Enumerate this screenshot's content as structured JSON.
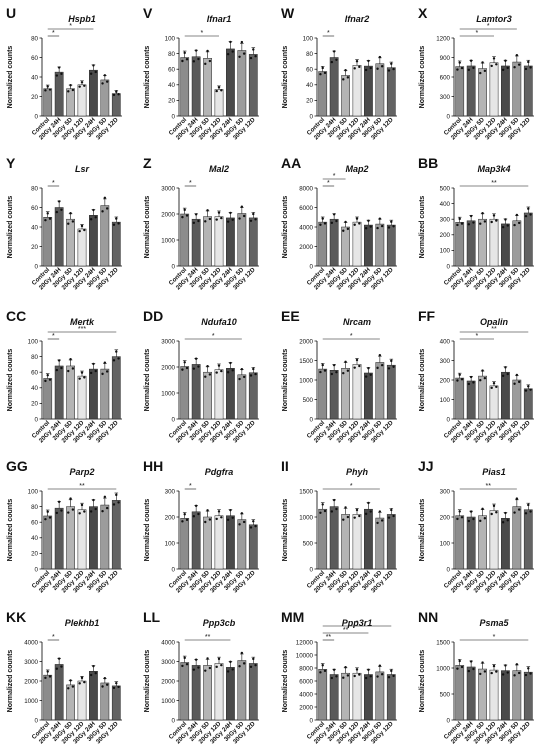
{
  "figure": {
    "ylabel": "Normalized counts",
    "categories": [
      "Control",
      "20Gy 24H",
      "20Gy 5D",
      "20Gy 12D",
      "30Gy 24H",
      "30Gy 5D",
      "30Gy 12D"
    ],
    "bar_colors": [
      "#8c8c8c",
      "#5a5a5a",
      "#b4b4b4",
      "#e6e6e6",
      "#4a4a4a",
      "#9c9c9c",
      "#636363"
    ]
  },
  "chart_data": [
    {
      "type": "bar",
      "panel": "U",
      "gene": "Hspb1",
      "ylim": [
        0,
        80
      ],
      "yticks": [
        0,
        20,
        40,
        60,
        80
      ],
      "values": [
        28,
        45,
        28,
        32,
        47,
        37,
        23
      ],
      "sig": [
        {
          "a": 0,
          "b": 1,
          "label": "*"
        },
        {
          "a": 0,
          "b": 4,
          "label": "*"
        }
      ]
    },
    {
      "type": "bar",
      "panel": "V",
      "gene": "Ifnar1",
      "ylim": [
        0,
        100
      ],
      "yticks": [
        0,
        20,
        40,
        60,
        80,
        100
      ],
      "values": [
        75,
        76,
        74,
        34,
        86,
        84,
        79
      ],
      "sig": [
        {
          "a": 0,
          "b": 3,
          "label": "*"
        }
      ]
    },
    {
      "type": "bar",
      "panel": "W",
      "gene": "Ifnar2",
      "ylim": [
        0,
        100
      ],
      "yticks": [
        0,
        20,
        40,
        60,
        80,
        100
      ],
      "values": [
        57,
        75,
        52,
        65,
        64,
        67,
        62
      ],
      "sig": [
        {
          "a": 0,
          "b": 1,
          "label": "*"
        }
      ]
    },
    {
      "type": "bar",
      "panel": "X",
      "gene": "Lamtor3",
      "ylim": [
        0,
        1200
      ],
      "yticks": [
        0,
        300,
        600,
        900,
        1200
      ],
      "values": [
        760,
        770,
        730,
        820,
        770,
        830,
        770
      ],
      "sig": [
        {
          "a": 0,
          "b": 3,
          "label": "*"
        },
        {
          "a": 0,
          "b": 5,
          "label": "*"
        }
      ]
    },
    {
      "type": "bar",
      "panel": "Y",
      "gene": "Lsr",
      "ylim": [
        0,
        80
      ],
      "yticks": [
        0,
        20,
        40,
        60,
        80
      ],
      "values": [
        50,
        60,
        48,
        38,
        52,
        62,
        45
      ],
      "sig": [
        {
          "a": 0,
          "b": 1,
          "label": "*"
        }
      ]
    },
    {
      "type": "bar",
      "panel": "Z",
      "gene": "Mal2",
      "ylim": [
        0,
        3000
      ],
      "yticks": [
        0,
        1000,
        2000,
        3000
      ],
      "values": [
        2000,
        1800,
        1900,
        1900,
        1850,
        2020,
        1850
      ],
      "sig": [
        {
          "a": 0,
          "b": 1,
          "label": "*"
        }
      ]
    },
    {
      "type": "bar",
      "panel": "AA",
      "gene": "Map2",
      "ylim": [
        0,
        8000
      ],
      "yticks": [
        0,
        2000,
        4000,
        6000,
        8000
      ],
      "values": [
        4500,
        4800,
        4000,
        4500,
        4200,
        4300,
        4200
      ],
      "sig": [
        {
          "a": 0,
          "b": 1,
          "label": "*"
        },
        {
          "a": 0,
          "b": 2,
          "label": "*"
        }
      ]
    },
    {
      "type": "bar",
      "panel": "BB",
      "gene": "Map3k4",
      "ylim": [
        0,
        500
      ],
      "yticks": [
        0,
        100,
        200,
        300,
        400,
        500
      ],
      "values": [
        280,
        290,
        300,
        300,
        270,
        290,
        340
      ],
      "sig": [
        {
          "a": 0,
          "b": 6,
          "label": "**"
        }
      ]
    },
    {
      "type": "bar",
      "panel": "CC",
      "gene": "Mertk",
      "ylim": [
        0,
        100
      ],
      "yticks": [
        0,
        20,
        40,
        60,
        80,
        100
      ],
      "values": [
        52,
        68,
        68,
        55,
        64,
        64,
        80
      ],
      "sig": [
        {
          "a": 0,
          "b": 1,
          "label": "*"
        },
        {
          "a": 0,
          "b": 6,
          "label": "***"
        }
      ]
    },
    {
      "type": "bar",
      "panel": "DD",
      "gene": "Ndufa10",
      "ylim": [
        0,
        3000
      ],
      "yticks": [
        0,
        1000,
        2000,
        3000
      ],
      "values": [
        2020,
        2100,
        1800,
        1900,
        1950,
        1700,
        1780
      ],
      "sig": [
        {
          "a": 0,
          "b": 5,
          "label": "*"
        }
      ]
    },
    {
      "type": "bar",
      "panel": "EE",
      "gene": "Nrcam",
      "ylim": [
        0,
        2000
      ],
      "yticks": [
        0,
        500,
        1000,
        1500,
        2000
      ],
      "values": [
        1280,
        1250,
        1300,
        1400,
        1180,
        1450,
        1380
      ],
      "sig": [
        {
          "a": 0,
          "b": 5,
          "label": "*"
        }
      ]
    },
    {
      "type": "bar",
      "panel": "FF",
      "gene": "Opalin",
      "ylim": [
        0,
        400
      ],
      "yticks": [
        0,
        100,
        200,
        300,
        400
      ],
      "values": [
        210,
        195,
        220,
        170,
        240,
        200,
        155
      ],
      "sig": [
        {
          "a": 0,
          "b": 3,
          "label": "*"
        },
        {
          "a": 0,
          "b": 6,
          "label": "**"
        }
      ]
    },
    {
      "type": "bar",
      "panel": "GG",
      "gene": "Parp2",
      "ylim": [
        0,
        100
      ],
      "yticks": [
        0,
        20,
        40,
        60,
        80,
        100
      ],
      "values": [
        68,
        78,
        80,
        76,
        80,
        82,
        88
      ],
      "sig": [
        {
          "a": 0,
          "b": 6,
          "label": "**"
        }
      ]
    },
    {
      "type": "bar",
      "panel": "HH",
      "gene": "Pdgfra",
      "ylim": [
        0,
        300
      ],
      "yticks": [
        0,
        100,
        200,
        300
      ],
      "values": [
        195,
        220,
        200,
        205,
        205,
        190,
        170
      ],
      "sig": [
        {
          "a": 0,
          "b": 1,
          "label": "*"
        }
      ]
    },
    {
      "type": "bar",
      "panel": "II",
      "gene": "Phyh",
      "ylim": [
        0,
        1500
      ],
      "yticks": [
        0,
        500,
        1000,
        1500
      ],
      "values": [
        1150,
        1200,
        1050,
        1050,
        1150,
        980,
        1050
      ],
      "sig": [
        {
          "a": 0,
          "b": 5,
          "label": "*"
        }
      ]
    },
    {
      "type": "bar",
      "panel": "JJ",
      "gene": "Pias1",
      "ylim": [
        0,
        300
      ],
      "yticks": [
        0,
        100,
        200,
        300
      ],
      "values": [
        205,
        200,
        205,
        225,
        195,
        240,
        228
      ],
      "sig": [
        {
          "a": 0,
          "b": 5,
          "label": "**"
        }
      ]
    },
    {
      "type": "bar",
      "panel": "KK",
      "gene": "Plekhb1",
      "ylim": [
        0,
        4000
      ],
      "yticks": [
        0,
        1000,
        2000,
        3000,
        4000
      ],
      "values": [
        2300,
        2850,
        1800,
        2000,
        2500,
        1900,
        1750
      ],
      "sig": [
        {
          "a": 0,
          "b": 1,
          "label": "*"
        }
      ]
    },
    {
      "type": "bar",
      "panel": "LL",
      "gene": "Ppp3cb",
      "ylim": [
        0,
        4000
      ],
      "yticks": [
        0,
        1000,
        2000,
        3000,
        4000
      ],
      "values": [
        2950,
        2800,
        2800,
        2900,
        2700,
        3050,
        2900
      ],
      "sig": [
        {
          "a": 0,
          "b": 4,
          "label": "**"
        }
      ]
    },
    {
      "type": "bar",
      "panel": "MM",
      "gene": "Ppp3r1",
      "ylim": [
        0,
        12000
      ],
      "yticks": [
        0,
        2000,
        4000,
        6000,
        8000,
        10000,
        12000
      ],
      "values": [
        7800,
        7000,
        7200,
        7200,
        7000,
        7400,
        7000
      ],
      "sig": [
        {
          "a": 0,
          "b": 1,
          "label": "**"
        },
        {
          "a": 0,
          "b": 4,
          "label": "**"
        },
        {
          "a": 0,
          "b": 6,
          "label": "*"
        }
      ]
    },
    {
      "type": "bar",
      "panel": "NN",
      "gene": "Psma5",
      "ylim": [
        0,
        1500
      ],
      "yticks": [
        0,
        500,
        1000,
        1500
      ],
      "values": [
        1050,
        1020,
        980,
        960,
        950,
        950,
        920
      ],
      "sig": [
        {
          "a": 0,
          "b": 6,
          "label": "*"
        }
      ]
    }
  ]
}
